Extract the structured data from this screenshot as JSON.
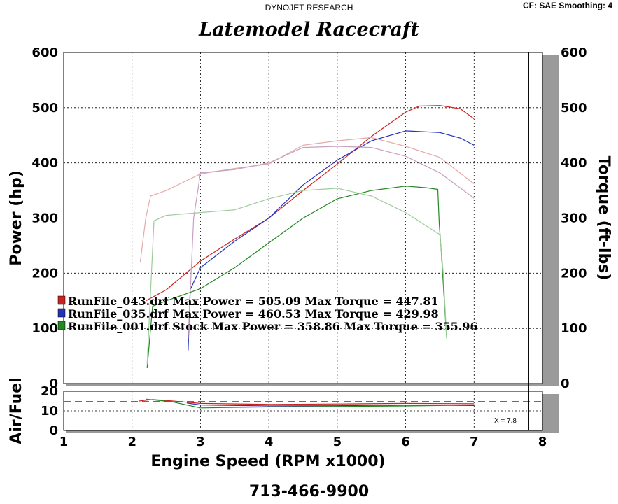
{
  "header": {
    "source": "DYNOJET RESEARCH",
    "settings": "CF: SAE  Smoothing: 4",
    "title": "Latemodel Racecraft",
    "phone": "713-466-9900"
  },
  "chart_data": [
    {
      "type": "line",
      "title": "Latemodel Racecraft",
      "xlabel": "Engine Speed (RPM x1000)",
      "ylabel": "Power (hp)",
      "y2label": "Torque (ft-lbs)",
      "xlim": [
        1,
        8
      ],
      "ylim": [
        0,
        600
      ],
      "y2lim": [
        0,
        600
      ],
      "x_ticks": [
        "1",
        "2",
        "3",
        "4",
        "5",
        "6",
        "7",
        "8"
      ],
      "y_ticks": [
        "0",
        "100",
        "200",
        "300",
        "400",
        "500",
        "600"
      ],
      "y2_ticks": [
        "0",
        "100",
        "200",
        "300",
        "400",
        "500",
        "600"
      ],
      "grid": true,
      "legend": [
        {
          "text": "RunFile_043.drf Max Power = 505.09    Max Torque = 447.81",
          "color": "#cc2222"
        },
        {
          "text": "RunFile_035.drf Max Power = 460.53    Max Torque = 429.98",
          "color": "#2233bb"
        },
        {
          "text": "RunFile_001.drf Stock Max Power = 358.86    Max Torque = 355.96",
          "color": "#228822"
        }
      ],
      "series": [
        {
          "name": "RunFile_043.drf Power",
          "color": "#cc2222",
          "points": [
            [
              2.2,
              150
            ],
            [
              2.5,
              170
            ],
            [
              3.0,
              222
            ],
            [
              3.5,
              262
            ],
            [
              4.0,
              300
            ],
            [
              4.5,
              350
            ],
            [
              5.0,
              398
            ],
            [
              5.5,
              448
            ],
            [
              6.0,
              492
            ],
            [
              6.2,
              503
            ],
            [
              6.5,
              504
            ],
            [
              6.8,
              498
            ],
            [
              7.0,
              480
            ]
          ]
        },
        {
          "name": "RunFile_043.drf Torque",
          "color": "#e4aaaa",
          "points": [
            [
              2.12,
              220
            ],
            [
              2.2,
              300
            ],
            [
              2.27,
              340
            ],
            [
              2.5,
              350
            ],
            [
              3.0,
              380
            ],
            [
              3.5,
              390
            ],
            [
              4.0,
              398
            ],
            [
              4.5,
              432
            ],
            [
              5.0,
              440
            ],
            [
              5.5,
              446
            ],
            [
              6.0,
              430
            ],
            [
              6.5,
              410
            ],
            [
              7.0,
              362
            ]
          ]
        },
        {
          "name": "RunFile_035.drf Power",
          "color": "#2233bb",
          "points": [
            [
              2.82,
              60
            ],
            [
              2.85,
              170
            ],
            [
              3.0,
              210
            ],
            [
              3.5,
              258
            ],
            [
              4.0,
              300
            ],
            [
              4.5,
              360
            ],
            [
              5.0,
              405
            ],
            [
              5.5,
              440
            ],
            [
              6.0,
              458
            ],
            [
              6.5,
              455
            ],
            [
              6.8,
              445
            ],
            [
              7.0,
              432
            ]
          ]
        },
        {
          "name": "RunFile_035.drf Torque",
          "color": "#c8a0c0",
          "points": [
            [
              2.82,
              80
            ],
            [
              2.9,
              300
            ],
            [
              3.0,
              382
            ],
            [
              3.5,
              388
            ],
            [
              4.0,
              400
            ],
            [
              4.5,
              428
            ],
            [
              5.0,
              430
            ],
            [
              5.5,
              428
            ],
            [
              6.0,
              412
            ],
            [
              6.5,
              382
            ],
            [
              7.0,
              336
            ]
          ]
        },
        {
          "name": "RunFile_001.drf Stock Power",
          "color": "#228822",
          "points": [
            [
              2.22,
              28
            ],
            [
              2.3,
              140
            ],
            [
              2.5,
              150
            ],
            [
              3.0,
              172
            ],
            [
              3.5,
              210
            ],
            [
              4.0,
              255
            ],
            [
              4.5,
              300
            ],
            [
              5.0,
              335
            ],
            [
              5.5,
              350
            ],
            [
              6.0,
              358
            ],
            [
              6.3,
              355
            ],
            [
              6.47,
              352
            ],
            [
              6.49,
              290
            ],
            [
              6.52,
              240
            ],
            [
              6.6,
              80
            ]
          ]
        },
        {
          "name": "RunFile_001.drf Stock Torque",
          "color": "#9ccc9c",
          "points": [
            [
              2.22,
              35
            ],
            [
              2.32,
              295
            ],
            [
              2.5,
              305
            ],
            [
              3.0,
              310
            ],
            [
              3.5,
              315
            ],
            [
              4.0,
              335
            ],
            [
              4.5,
              350
            ],
            [
              5.0,
              354
            ],
            [
              5.5,
              340
            ],
            [
              6.0,
              310
            ],
            [
              6.5,
              270
            ],
            [
              6.55,
              200
            ],
            [
              6.6,
              80
            ]
          ]
        }
      ]
    },
    {
      "type": "line",
      "ylabel": "Air/Fuel",
      "xlim": [
        1,
        8
      ],
      "ylim": [
        0,
        20
      ],
      "y_ticks": [
        "0",
        "10",
        "20"
      ],
      "reference_line": 14.7,
      "annotation": "X = 7.8",
      "series": [
        {
          "name": "RunFile_043.drf A/F",
          "color": "#cc2222",
          "points": [
            [
              2.1,
              15
            ],
            [
              2.3,
              15.8
            ],
            [
              2.6,
              15
            ],
            [
              3.0,
              13.8
            ],
            [
              4.0,
              13.3
            ],
            [
              5.0,
              13.5
            ],
            [
              6.0,
              13.8
            ],
            [
              7.0,
              13.6
            ]
          ]
        },
        {
          "name": "RunFile_035.drf A/F",
          "color": "#2233bb",
          "points": [
            [
              2.8,
              14
            ],
            [
              3.0,
              13
            ],
            [
              4.0,
              12.5
            ],
            [
              5.0,
              12.6
            ],
            [
              6.0,
              13
            ],
            [
              7.0,
              12.7
            ]
          ]
        },
        {
          "name": "RunFile_001.drf Stock A/F",
          "color": "#228822",
          "points": [
            [
              2.2,
              16
            ],
            [
              2.6,
              14.5
            ],
            [
              3.0,
              11.5
            ],
            [
              4.0,
              12
            ],
            [
              5.0,
              12.2
            ],
            [
              6.0,
              12.5
            ],
            [
              6.6,
              12.8
            ]
          ]
        }
      ]
    }
  ]
}
